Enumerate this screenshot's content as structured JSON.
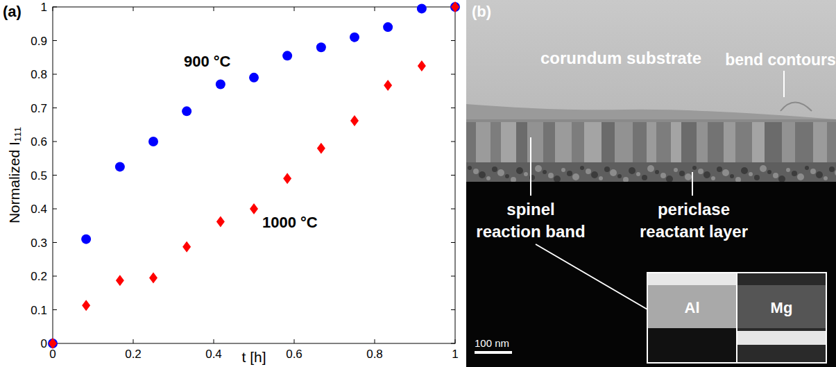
{
  "chart_data": {
    "type": "scatter",
    "title": "(a)",
    "x_label": "t [h]",
    "y_label": "Normalized I₁₁₁",
    "xlim": [
      0,
      1
    ],
    "ylim": [
      0,
      1
    ],
    "xticks": [
      0,
      0.2,
      0.4,
      0.6,
      0.8,
      1
    ],
    "yticks": [
      0,
      0.1,
      0.2,
      0.3,
      0.4,
      0.5,
      0.6,
      0.7,
      0.8,
      0.9,
      1
    ],
    "grid": false,
    "x": [
      0,
      0.083,
      0.167,
      0.25,
      0.333,
      0.417,
      0.5,
      0.583,
      0.667,
      0.75,
      0.833,
      0.917,
      1
    ],
    "series": [
      {
        "name": "900 °C",
        "color": "#0000ff",
        "marker": "circle",
        "values": [
          0,
          0.31,
          0.525,
          0.6,
          0.69,
          0.77,
          0.79,
          0.855,
          0.88,
          0.91,
          0.94,
          0.995,
          1
        ]
      },
      {
        "name": "1000 °C",
        "color": "#ff0000",
        "marker": "diamond",
        "values": [
          0,
          0.113,
          0.187,
          0.195,
          0.287,
          0.362,
          0.4,
          0.49,
          0.58,
          0.662,
          0.767,
          0.825,
          1
        ]
      }
    ]
  },
  "panel_b": {
    "label": "(b)",
    "substrate": "corundum substrate",
    "bend_contours": "bend contours",
    "reaction_band": [
      "spinel",
      "reaction band"
    ],
    "reactant_layer": [
      "periclase",
      "reactant layer"
    ],
    "insets": [
      "Al",
      "Mg"
    ],
    "scale_bar": "100 nm"
  }
}
